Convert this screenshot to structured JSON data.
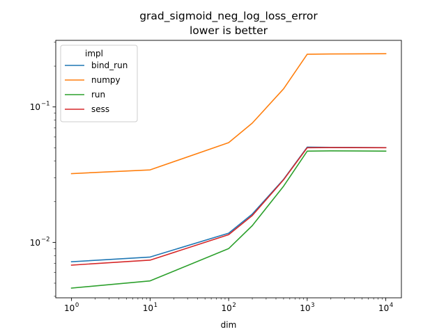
{
  "chart_data": {
    "type": "line",
    "title": "grad_sigmoid_neg_log_loss_error",
    "subtitle": "lower is better",
    "xlabel": "dim",
    "ylabel": "",
    "xscale": "log",
    "yscale": "log",
    "xlim": [
      0.63,
      15800
    ],
    "ylim": [
      0.0039,
      0.31
    ],
    "x_ticks": [
      {
        "base": "10",
        "exp": "0",
        "value": 1
      },
      {
        "base": "10",
        "exp": "1",
        "value": 10
      },
      {
        "base": "10",
        "exp": "2",
        "value": 100
      },
      {
        "base": "10",
        "exp": "3",
        "value": 1000
      },
      {
        "base": "10",
        "exp": "4",
        "value": 10000
      }
    ],
    "y_ticks": [
      {
        "base": "10",
        "exp": "−2",
        "value": 0.01
      },
      {
        "base": "10",
        "exp": "−1",
        "value": 0.1
      }
    ],
    "legend": {
      "title": "impl",
      "position": "top-left"
    },
    "grid": false,
    "x": [
      1,
      10,
      100,
      200,
      500,
      1000,
      2000,
      10000
    ],
    "series": [
      {
        "name": "bind_run",
        "color": "#1f77b4",
        "values": [
          0.0072,
          0.0078,
          0.0117,
          0.0162,
          0.0292,
          0.0505,
          0.0503,
          0.0501
        ]
      },
      {
        "name": "numpy",
        "color": "#ff7f0e",
        "values": [
          0.0322,
          0.0343,
          0.0545,
          0.076,
          0.136,
          0.245,
          0.246,
          0.247
        ]
      },
      {
        "name": "run",
        "color": "#2ca02c",
        "values": [
          0.0046,
          0.0052,
          0.009,
          0.0133,
          0.026,
          0.0472,
          0.0474,
          0.0472
        ]
      },
      {
        "name": "sess",
        "color": "#d62728",
        "values": [
          0.0068,
          0.0074,
          0.0114,
          0.0158,
          0.029,
          0.05,
          0.0501,
          0.05
        ]
      }
    ]
  }
}
